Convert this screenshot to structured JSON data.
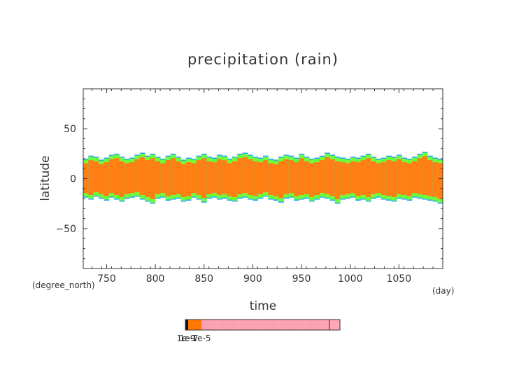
{
  "chart_data": {
    "type": "heatmap",
    "title": "precipitation (rain)",
    "xlabel": "time",
    "ylabel": "latitude",
    "x_unit": "(day)",
    "y_unit": "(degree_north)",
    "xlim": [
      726,
      1095
    ],
    "ylim": [
      -90,
      90
    ],
    "x_ticks": [
      750,
      800,
      850,
      900,
      950,
      1000,
      1050
    ],
    "y_ticks": [
      50,
      0,
      -50
    ],
    "y_tick_labels": [
      "50",
      "0",
      "−50"
    ],
    "band_north_edge_deg": [
      19,
      22,
      21,
      18,
      20,
      23,
      24,
      21,
      19,
      20,
      23,
      25,
      22,
      24,
      21,
      19,
      22,
      24,
      21,
      18,
      20,
      19,
      22,
      24,
      21,
      20,
      23,
      22,
      19,
      21,
      24,
      25,
      23,
      21,
      20,
      22,
      19,
      18,
      21,
      23,
      22,
      20,
      24,
      21,
      19,
      20,
      22,
      25,
      23,
      21,
      20,
      19,
      21,
      20,
      22,
      24,
      21,
      19,
      20,
      22,
      21,
      23,
      20,
      19,
      21,
      24,
      26,
      22,
      20,
      19
    ],
    "band_south_edge_deg": [
      -18,
      -20,
      -17,
      -19,
      -21,
      -18,
      -20,
      -22,
      -19,
      -18,
      -17,
      -20,
      -22,
      -24,
      -19,
      -18,
      -21,
      -20,
      -19,
      -22,
      -21,
      -18,
      -20,
      -23,
      -19,
      -18,
      -20,
      -19,
      -21,
      -22,
      -19,
      -18,
      -20,
      -21,
      -19,
      -17,
      -20,
      -21,
      -23,
      -19,
      -18,
      -21,
      -20,
      -19,
      -22,
      -20,
      -18,
      -19,
      -21,
      -24,
      -20,
      -19,
      -18,
      -21,
      -20,
      -22,
      -19,
      -18,
      -20,
      -21,
      -22,
      -19,
      -20,
      -21,
      -18,
      -19,
      -20,
      -21,
      -22,
      -24
    ],
    "colorbar": {
      "tick_labels": [
        "1e-9",
        "1e-7",
        "1e-5"
      ],
      "colors": [
        "#111111",
        "#ff7700",
        "#ffa8b8"
      ]
    },
    "colors": {
      "core": "#ff7f14",
      "edge": "#6fff3a",
      "edge_outer": "#1fa0ff"
    }
  }
}
